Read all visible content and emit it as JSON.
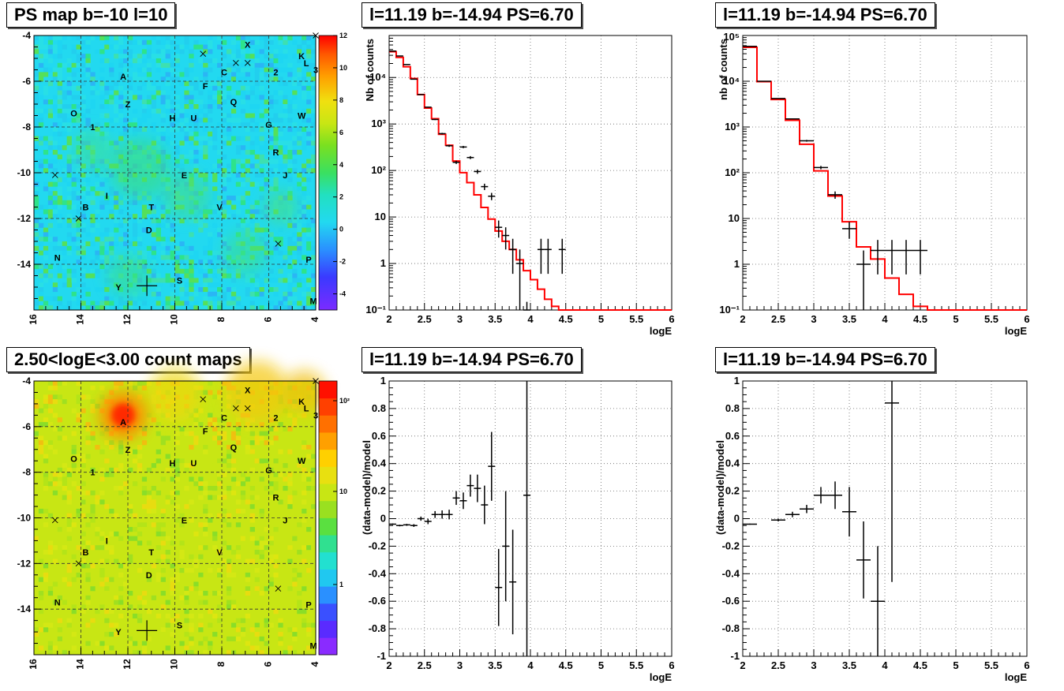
{
  "titles": {
    "map_ps": "PS map b=-10 l=10",
    "map_counts": "2.50<logE<3.00 count maps",
    "spec_top_mid": "l=11.19 b=-14.94 PS=6.70",
    "spec_top_right": "l=11.19 b=-14.94 PS=6.70",
    "res_bot_mid": "l=11.19 b=-14.94 PS=6.70",
    "res_bot_right": "l=11.19 b=-14.94 PS=6.70"
  },
  "colors": {
    "model_line": "#ff0000",
    "data_points": "#000000",
    "ps_map_background": "#22d9f0",
    "counts_map_background": "#c8e614",
    "source_hotspot": "#ff2a00"
  },
  "chart_data": [
    {
      "id": "ps_map",
      "type": "heatmap",
      "title": "PS map b=-10 l=10",
      "xlim": [
        16,
        4
      ],
      "ylim": [
        -16,
        -4
      ],
      "x_ticks": [
        "16",
        "14",
        "12",
        "10",
        "8",
        "6",
        "4"
      ],
      "y_ticks": [
        "-4",
        "-6",
        "-8",
        "-10",
        "-12",
        "-14"
      ],
      "colorbar": {
        "scale": "linear",
        "range": [
          -5,
          12
        ],
        "ticks": [
          "12",
          "10",
          "8",
          "6",
          "4",
          "2",
          "0",
          "-2",
          "-4"
        ]
      },
      "grid": true,
      "source_labels": [
        {
          "label": "X",
          "l": 6.9,
          "b": -4.4
        },
        {
          "label": "K",
          "l": 4.6,
          "b": -4.9
        },
        {
          "label": "L",
          "l": 4.4,
          "b": -5.2
        },
        {
          "label": "3",
          "l": 4.0,
          "b": -5.5
        },
        {
          "label": "2",
          "l": 5.7,
          "b": -5.6
        },
        {
          "label": "C",
          "l": 7.9,
          "b": -5.6
        },
        {
          "label": "A",
          "l": 12.2,
          "b": -5.8
        },
        {
          "label": "F",
          "l": 8.7,
          "b": -6.2
        },
        {
          "label": "Z",
          "l": 12.0,
          "b": -7.0
        },
        {
          "label": "Q",
          "l": 7.5,
          "b": -6.9
        },
        {
          "label": "O",
          "l": 14.3,
          "b": -7.4
        },
        {
          "label": "H",
          "l": 10.1,
          "b": -7.6
        },
        {
          "label": "U",
          "l": 9.2,
          "b": -7.6
        },
        {
          "label": "W",
          "l": 4.6,
          "b": -7.5
        },
        {
          "label": "G",
          "l": 6.0,
          "b": -7.9
        },
        {
          "label": "1",
          "l": 13.5,
          "b": -8.0
        },
        {
          "label": "R",
          "l": 5.7,
          "b": -9.1
        },
        {
          "label": "E",
          "l": 9.6,
          "b": -10.1
        },
        {
          "label": "J",
          "l": 5.3,
          "b": -10.1
        },
        {
          "label": "I",
          "l": 12.9,
          "b": -11.0
        },
        {
          "label": "B",
          "l": 13.8,
          "b": -11.5
        },
        {
          "label": "T",
          "l": 11.0,
          "b": -11.5
        },
        {
          "label": "V",
          "l": 8.1,
          "b": -11.5
        },
        {
          "label": "D",
          "l": 11.1,
          "b": -12.5
        },
        {
          "label": "N",
          "l": 15.0,
          "b": -13.7
        },
        {
          "label": "P",
          "l": 4.3,
          "b": -13.8
        },
        {
          "label": "Y",
          "l": 12.4,
          "b": -15.0
        },
        {
          "label": "S",
          "l": 9.8,
          "b": -14.7
        },
        {
          "label": "M",
          "l": 4.1,
          "b": -15.6
        }
      ],
      "markers": [
        {
          "kind": "x",
          "l": 8.8,
          "b": -4.8
        },
        {
          "kind": "x",
          "l": 7.4,
          "b": -5.2
        },
        {
          "kind": "x",
          "l": 6.9,
          "b": -5.2
        },
        {
          "kind": "x",
          "l": 4.0,
          "b": -4.0
        },
        {
          "kind": "x",
          "l": 15.1,
          "b": -10.1
        },
        {
          "kind": "x",
          "l": 14.1,
          "b": -12.0
        },
        {
          "kind": "x",
          "l": 5.6,
          "b": -13.1
        },
        {
          "kind": "plus",
          "l": 11.19,
          "b": -14.94
        }
      ]
    },
    {
      "id": "counts_map",
      "type": "heatmap",
      "title": "2.50<logE<3.00 count maps",
      "xlim": [
        16,
        4
      ],
      "ylim": [
        -16,
        -4
      ],
      "x_ticks": [
        "16",
        "14",
        "12",
        "10",
        "8",
        "6",
        "4"
      ],
      "y_ticks": [
        "-4",
        "-6",
        "-8",
        "-10",
        "-12",
        "-14"
      ],
      "colorbar": {
        "scale": "log",
        "ticks": [
          "10²",
          "10",
          "1"
        ]
      },
      "grid": true,
      "hotspot": {
        "label": "A",
        "l": 12.2,
        "b": -5.5
      }
    },
    {
      "id": "spectrum_mid",
      "type": "line",
      "title": "l=11.19 b=-14.94 PS=6.70",
      "xlabel": "logE",
      "ylabel": "Nb of counts",
      "xlim": [
        2,
        6
      ],
      "ylim": [
        0.1,
        80000
      ],
      "yscale": "log",
      "x_ticks": [
        "2",
        "2.5",
        "3",
        "3.5",
        "4",
        "4.5",
        "5",
        "5.5",
        "6"
      ],
      "y_ticks": [
        {
          "v": 100000,
          "t": "10⁵",
          "show": false
        },
        {
          "v": 10000,
          "t": "10⁴"
        },
        {
          "v": 1000,
          "t": "10³"
        },
        {
          "v": 100,
          "t": "10²"
        },
        {
          "v": 10,
          "t": "10"
        },
        {
          "v": 1,
          "t": "1"
        },
        {
          "v": 0.1,
          "t": "10⁻¹"
        }
      ],
      "grid": true,
      "series": [
        {
          "kind": "step",
          "color": "#ff0000",
          "edges": [
            2.0,
            2.1,
            2.2,
            2.3,
            2.4,
            2.5,
            2.6,
            2.7,
            2.8,
            2.9,
            3.0,
            3.1,
            3.2,
            3.3,
            3.4,
            3.5,
            3.6,
            3.7,
            3.8,
            3.9,
            4.0,
            4.1,
            4.2,
            4.3,
            4.4,
            4.5,
            6.0
          ],
          "values": [
            36000,
            27000,
            17000,
            9500,
            4300,
            2200,
            1300,
            600,
            350,
            160,
            90,
            55,
            30,
            16,
            9,
            5,
            3,
            2,
            1.2,
            0.7,
            0.45,
            0.28,
            0.17,
            0.12,
            0.1,
            0.1
          ]
        },
        {
          "kind": "points",
          "color": "#000000",
          "x": [
            2.05,
            2.15,
            2.25,
            2.35,
            2.45,
            2.55,
            2.65,
            2.75,
            2.85,
            2.95,
            3.05,
            3.15,
            3.25,
            3.35,
            3.45,
            3.55,
            3.65,
            3.75,
            3.85,
            3.95,
            4.15,
            4.25,
            4.45
          ],
          "xerr": 0.05,
          "y": [
            37000,
            29000,
            19000,
            9200,
            4300,
            2300,
            1250,
            620,
            340,
            150,
            320,
            190,
            95,
            45,
            28,
            6,
            4,
            2,
            1,
            0.1,
            2,
            2,
            2
          ],
          "yerr_low": [
            190,
            170,
            138,
            96,
            66,
            48,
            35,
            25,
            18,
            12,
            18,
            14,
            10,
            7,
            5,
            2.4,
            2,
            1.4,
            1,
            0.05,
            1.4,
            1.4,
            1.4
          ],
          "yerr_high": [
            190,
            170,
            138,
            96,
            66,
            48,
            35,
            25,
            18,
            12,
            18,
            14,
            10,
            7,
            5,
            2.4,
            2,
            1.4,
            1,
            0.05,
            1.4,
            1.4,
            1.4
          ]
        }
      ]
    },
    {
      "id": "spectrum_right",
      "type": "line",
      "title": "l=11.19 b=-14.94 PS=6.70",
      "xlabel": "logE",
      "ylabel": "nb of counts",
      "xlim": [
        2,
        6
      ],
      "ylim": [
        0.1,
        100000
      ],
      "yscale": "log",
      "x_ticks": [
        "2",
        "2.5",
        "3",
        "3.5",
        "4",
        "4.5",
        "5",
        "5.5",
        "6"
      ],
      "y_ticks": [
        {
          "v": 100000,
          "t": "10⁵"
        },
        {
          "v": 10000,
          "t": "10⁴"
        },
        {
          "v": 1000,
          "t": "10³"
        },
        {
          "v": 100,
          "t": "10²"
        },
        {
          "v": 10,
          "t": "10"
        },
        {
          "v": 1,
          "t": "1"
        },
        {
          "v": 0.1,
          "t": "10⁻¹"
        }
      ],
      "grid": true,
      "series": [
        {
          "kind": "step",
          "color": "#ff0000",
          "edges": [
            2.0,
            2.2,
            2.4,
            2.6,
            2.8,
            3.0,
            3.2,
            3.4,
            3.6,
            3.8,
            4.0,
            4.2,
            4.4,
            4.6,
            6.0
          ],
          "values": [
            55000,
            9800,
            4000,
            1400,
            420,
            110,
            31,
            8.5,
            2.4,
            1.3,
            0.5,
            0.22,
            0.12,
            0.1
          ],
          "overlap_black_prefix": true
        },
        {
          "kind": "points",
          "color": "#000000",
          "x": [
            2.1,
            2.3,
            2.5,
            2.7,
            2.9,
            3.1,
            3.3,
            3.5,
            3.7,
            3.9,
            4.1,
            4.3,
            4.5
          ],
          "xerr": 0.1,
          "y": [
            58000,
            10000,
            4200,
            1500,
            500,
            130,
            33,
            6,
            1,
            2,
            2,
            2,
            2
          ],
          "yerr_low": [
            240,
            100,
            65,
            39,
            22,
            11,
            6,
            2.4,
            0.95,
            1.4,
            1.4,
            1.4,
            1.4
          ],
          "yerr_high": [
            240,
            100,
            65,
            39,
            22,
            11,
            6,
            2.4,
            1,
            1.4,
            1.4,
            1.4,
            1.4
          ]
        }
      ]
    },
    {
      "id": "residual_mid",
      "type": "scatter",
      "title": "l=11.19 b=-14.94 PS=6.70",
      "xlabel": "logE",
      "ylabel": "(data-model)/model",
      "xlim": [
        2,
        6
      ],
      "ylim": [
        -1,
        1
      ],
      "x_ticks": [
        "2",
        "2.5",
        "3",
        "3.5",
        "4",
        "4.5",
        "5",
        "5.5",
        "6"
      ],
      "y_ticks": [
        "1",
        "0.8",
        "0.6",
        "0.4",
        "0.2",
        "0",
        "-0.2",
        "-0.4",
        "-0.6",
        "-0.8",
        "-1"
      ],
      "grid": true,
      "series": [
        {
          "kind": "points",
          "color": "#000000",
          "x": [
            2.05,
            2.15,
            2.25,
            2.35,
            2.45,
            2.55,
            2.65,
            2.75,
            2.85,
            2.95,
            3.05,
            3.15,
            3.25,
            3.35,
            3.45,
            3.55,
            3.65,
            3.75,
            3.95
          ],
          "xerr": 0.05,
          "y": [
            -0.04,
            -0.05,
            -0.045,
            -0.05,
            0.0,
            -0.02,
            0.03,
            0.03,
            0.03,
            0.15,
            0.13,
            0.24,
            0.22,
            0.1,
            0.38,
            -0.5,
            -0.2,
            -0.46,
            0.17
          ],
          "yerr": [
            0.005,
            0.006,
            0.007,
            0.01,
            0.015,
            0.02,
            0.025,
            0.03,
            0.035,
            0.05,
            0.06,
            0.08,
            0.1,
            0.14,
            0.25,
            0.28,
            0.4,
            0.38,
            1.5
          ]
        }
      ]
    },
    {
      "id": "residual_right",
      "type": "scatter",
      "title": "l=11.19 b=-14.94 PS=6.70",
      "xlabel": "logE",
      "ylabel": "(data-model)/model",
      "xlim": [
        2,
        6
      ],
      "ylim": [
        -1,
        1
      ],
      "x_ticks": [
        "2",
        "2.5",
        "3",
        "3.5",
        "4",
        "4.5",
        "5",
        "5.5",
        "6"
      ],
      "y_ticks": [
        "1",
        "0.8",
        "0.6",
        "0.4",
        "0.2",
        "0",
        "-0.2",
        "-0.4",
        "-0.6",
        "-0.8",
        "-1"
      ],
      "grid": true,
      "series": [
        {
          "kind": "points",
          "color": "#000000",
          "x": [
            2.1,
            2.5,
            2.7,
            2.9,
            3.1,
            3.3,
            3.5,
            3.7,
            3.9,
            4.1
          ],
          "xerr": 0.1,
          "y": [
            -0.04,
            -0.01,
            0.03,
            0.07,
            0.17,
            0.17,
            0.05,
            -0.3,
            -0.6,
            0.84
          ],
          "yerr": [
            0.004,
            0.01,
            0.02,
            0.03,
            0.06,
            0.1,
            0.18,
            0.28,
            0.4,
            1.3
          ]
        }
      ]
    }
  ]
}
